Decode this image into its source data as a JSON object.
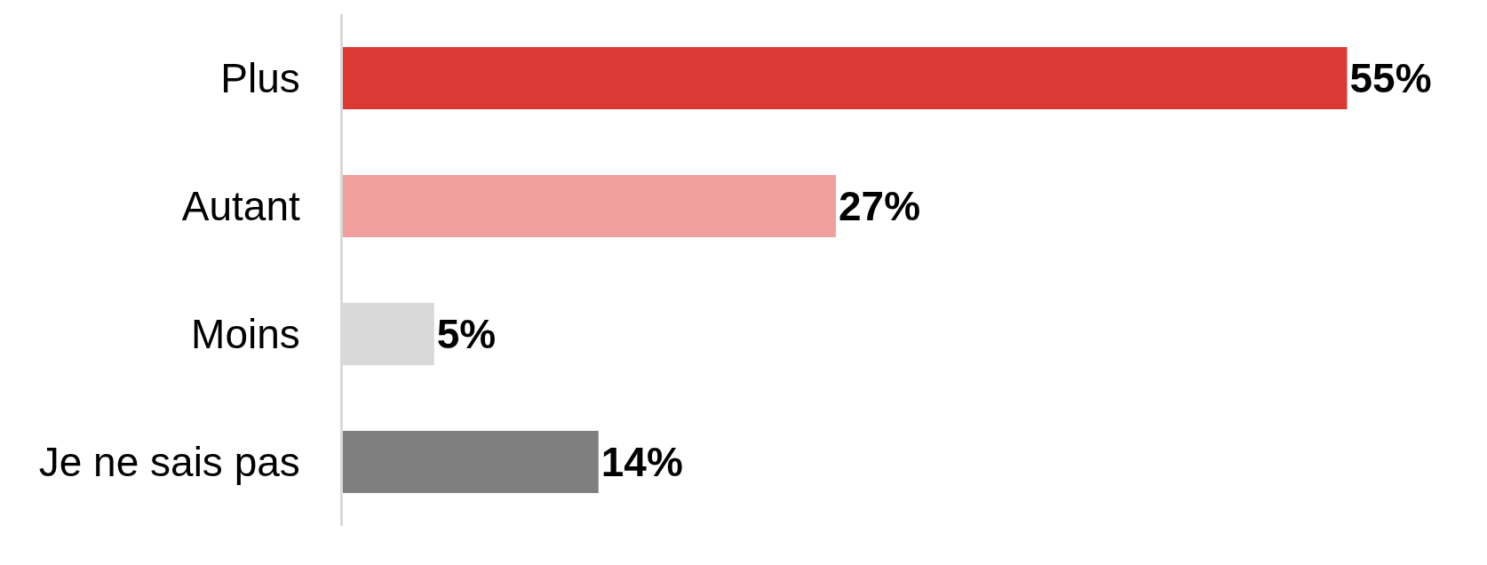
{
  "chart_data": {
    "type": "bar",
    "orientation": "horizontal",
    "categories": [
      "Plus",
      "Autant",
      "Moins",
      "Je ne sais pas"
    ],
    "values": [
      55,
      27,
      5,
      14
    ],
    "colors": [
      "#db3a34",
      "#f19f9d",
      "#d9d9d9",
      "#7f7f7f"
    ],
    "value_labels": [
      "55%",
      "27%",
      "5%",
      "14%"
    ],
    "tick_labels": "y"
  }
}
